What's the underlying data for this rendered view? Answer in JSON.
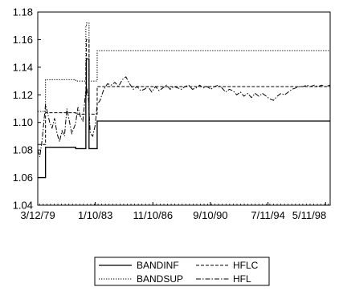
{
  "chart_data": {
    "type": "line",
    "title": "",
    "xlabel": "",
    "ylabel": "",
    "x_tick_labels": [
      "3/12/79",
      "1/10/83",
      "11/10/86",
      "9/10/90",
      "7/11/94",
      "5/11/98"
    ],
    "y_ticks": [
      1.04,
      1.06,
      1.08,
      1.1,
      1.12,
      1.14,
      1.16,
      1.18
    ],
    "y_tick_labels": [
      "1.04",
      "1.06",
      "1.08",
      "1.10",
      "1.12",
      "1.14",
      "1.16",
      "1.18"
    ],
    "xlim": [
      "1979-03-12",
      "1998-12-31"
    ],
    "ylim": [
      1.04,
      1.18
    ],
    "grid": false,
    "legend_placement": "bottom-center",
    "legend": [
      {
        "name": "BANDINF",
        "style": "solid"
      },
      {
        "name": "HFLC",
        "style": "dashed"
      },
      {
        "name": "BANDSUP",
        "style": "dotted"
      },
      {
        "name": "HFL",
        "style": "dashdot"
      }
    ],
    "series": [
      {
        "name": "BANDINF",
        "style": "solid",
        "color": "#000000",
        "points": [
          [
            "1979-03-12",
            1.06
          ],
          [
            "1979-09-20",
            1.06
          ],
          [
            "1979-09-20",
            1.082
          ],
          [
            "1981-10-05",
            1.082
          ],
          [
            "1981-10-05",
            1.081
          ],
          [
            "1982-06-14",
            1.081
          ],
          [
            "1982-06-14",
            1.12
          ],
          [
            "1982-06-28",
            1.12
          ],
          [
            "1982-06-28",
            1.146
          ],
          [
            "1982-09-01",
            1.146
          ],
          [
            "1982-09-01",
            1.081
          ],
          [
            "1983-03-21",
            1.081
          ],
          [
            "1983-03-21",
            1.101
          ],
          [
            "1998-12-31",
            1.101
          ]
        ]
      },
      {
        "name": "BANDSUP",
        "style": "dotted",
        "color": "#000000",
        "points": [
          [
            "1979-03-12",
            1.108
          ],
          [
            "1979-09-20",
            1.108
          ],
          [
            "1979-09-20",
            1.131
          ],
          [
            "1981-10-05",
            1.131
          ],
          [
            "1981-10-05",
            1.13
          ],
          [
            "1982-06-14",
            1.13
          ],
          [
            "1982-06-14",
            1.17
          ],
          [
            "1982-06-28",
            1.17
          ],
          [
            "1982-06-28",
            1.172
          ],
          [
            "1982-09-01",
            1.172
          ],
          [
            "1982-09-01",
            1.13
          ],
          [
            "1983-03-21",
            1.13
          ],
          [
            "1983-03-21",
            1.152
          ],
          [
            "1998-12-31",
            1.152
          ]
        ]
      },
      {
        "name": "HFLC",
        "style": "dashed",
        "color": "#000000",
        "points": [
          [
            "1979-03-12",
            1.084
          ],
          [
            "1979-09-20",
            1.084
          ],
          [
            "1979-09-20",
            1.107
          ],
          [
            "1981-10-05",
            1.107
          ],
          [
            "1981-10-05",
            1.106
          ],
          [
            "1982-06-14",
            1.106
          ],
          [
            "1982-06-14",
            1.145
          ],
          [
            "1982-06-28",
            1.145
          ],
          [
            "1982-06-28",
            1.16
          ],
          [
            "1982-09-01",
            1.16
          ],
          [
            "1982-09-01",
            1.106
          ],
          [
            "1983-03-21",
            1.106
          ],
          [
            "1983-03-21",
            1.126
          ],
          [
            "1998-12-31",
            1.126
          ]
        ]
      },
      {
        "name": "HFL",
        "style": "dashdot",
        "color": "#000000",
        "points": [
          [
            "1979-03-12",
            1.08
          ],
          [
            "1979-05-01",
            1.075
          ],
          [
            "1979-07-01",
            1.088
          ],
          [
            "1979-08-15",
            1.102
          ],
          [
            "1979-09-20",
            1.113
          ],
          [
            "1979-11-01",
            1.108
          ],
          [
            "1980-01-01",
            1.1
          ],
          [
            "1980-03-01",
            1.096
          ],
          [
            "1980-05-01",
            1.103
          ],
          [
            "1980-07-01",
            1.092
          ],
          [
            "1980-09-01",
            1.086
          ],
          [
            "1980-11-01",
            1.094
          ],
          [
            "1981-01-01",
            1.09
          ],
          [
            "1981-03-01",
            1.11
          ],
          [
            "1981-05-01",
            1.101
          ],
          [
            "1981-07-01",
            1.092
          ],
          [
            "1981-10-01",
            1.099
          ],
          [
            "1981-12-01",
            1.111
          ],
          [
            "1982-02-01",
            1.104
          ],
          [
            "1982-04-01",
            1.101
          ],
          [
            "1982-06-01",
            1.12
          ],
          [
            "1982-07-01",
            1.126
          ],
          [
            "1982-08-15",
            1.118
          ],
          [
            "1982-10-01",
            1.092
          ],
          [
            "1982-12-01",
            1.09
          ],
          [
            "1983-02-01",
            1.098
          ],
          [
            "1983-03-21",
            1.113
          ],
          [
            "1983-06-01",
            1.116
          ],
          [
            "1983-09-01",
            1.124
          ],
          [
            "1983-12-01",
            1.128
          ],
          [
            "1984-03-01",
            1.127
          ],
          [
            "1984-06-01",
            1.129
          ],
          [
            "1984-09-01",
            1.126
          ],
          [
            "1984-12-01",
            1.131
          ],
          [
            "1985-03-01",
            1.133
          ],
          [
            "1985-06-01",
            1.128
          ],
          [
            "1985-09-01",
            1.124
          ],
          [
            "1985-12-01",
            1.126
          ],
          [
            "1986-03-01",
            1.123
          ],
          [
            "1986-06-01",
            1.124
          ],
          [
            "1986-09-01",
            1.126
          ],
          [
            "1986-12-01",
            1.122
          ],
          [
            "1987-03-01",
            1.126
          ],
          [
            "1987-06-01",
            1.123
          ],
          [
            "1987-09-01",
            1.125
          ],
          [
            "1987-12-01",
            1.127
          ],
          [
            "1988-03-01",
            1.124
          ],
          [
            "1988-06-01",
            1.126
          ],
          [
            "1988-09-01",
            1.125
          ],
          [
            "1988-12-01",
            1.124
          ],
          [
            "1989-03-01",
            1.126
          ],
          [
            "1989-06-01",
            1.127
          ],
          [
            "1989-09-01",
            1.124
          ],
          [
            "1989-12-01",
            1.125
          ],
          [
            "1990-03-01",
            1.127
          ],
          [
            "1990-06-01",
            1.125
          ],
          [
            "1990-09-01",
            1.126
          ],
          [
            "1990-12-01",
            1.124
          ],
          [
            "1991-03-01",
            1.126
          ],
          [
            "1991-06-01",
            1.127
          ],
          [
            "1991-09-01",
            1.125
          ],
          [
            "1991-12-01",
            1.122
          ],
          [
            "1992-03-01",
            1.124
          ],
          [
            "1992-06-01",
            1.123
          ],
          [
            "1992-09-01",
            1.12
          ],
          [
            "1992-12-01",
            1.122
          ],
          [
            "1993-03-01",
            1.119
          ],
          [
            "1993-06-01",
            1.121
          ],
          [
            "1993-09-01",
            1.118
          ],
          [
            "1993-12-01",
            1.121
          ],
          [
            "1994-03-01",
            1.119
          ],
          [
            "1994-06-01",
            1.121
          ],
          [
            "1994-09-01",
            1.119
          ],
          [
            "1994-12-01",
            1.117
          ],
          [
            "1995-03-01",
            1.116
          ],
          [
            "1995-06-01",
            1.119
          ],
          [
            "1995-09-01",
            1.121
          ],
          [
            "1995-12-01",
            1.12
          ],
          [
            "1996-03-01",
            1.122
          ],
          [
            "1996-06-01",
            1.124
          ],
          [
            "1996-09-01",
            1.125
          ],
          [
            "1996-12-01",
            1.126
          ],
          [
            "1997-03-01",
            1.126
          ],
          [
            "1997-06-01",
            1.127
          ],
          [
            "1997-09-01",
            1.126
          ],
          [
            "1997-12-01",
            1.127
          ],
          [
            "1998-03-01",
            1.126
          ],
          [
            "1998-06-01",
            1.127
          ],
          [
            "1998-09-01",
            1.126
          ],
          [
            "1998-12-31",
            1.127
          ]
        ]
      }
    ]
  }
}
